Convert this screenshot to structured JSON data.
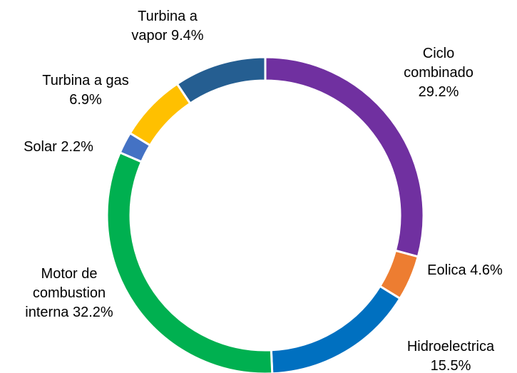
{
  "chart_data": {
    "type": "donut",
    "categories": [
      "Ciclo combinado",
      "Eolica",
      "Hidroelectrica",
      "Motor de combustion interna",
      "Solar",
      "Turbina a gas",
      "Turbina a vapor"
    ],
    "values": [
      29.2,
      4.6,
      15.5,
      32.2,
      2.2,
      6.9,
      9.4
    ],
    "value_labels": [
      "29.2%",
      "4.6%",
      "15.5%",
      "32.2%",
      "2.2%",
      "6.9%",
      "9.4%"
    ],
    "colors": [
      "#7030a0",
      "#ed7d31",
      "#0070c0",
      "#00b050",
      "#4472c4",
      "#ffc000",
      "#255e91"
    ]
  }
}
